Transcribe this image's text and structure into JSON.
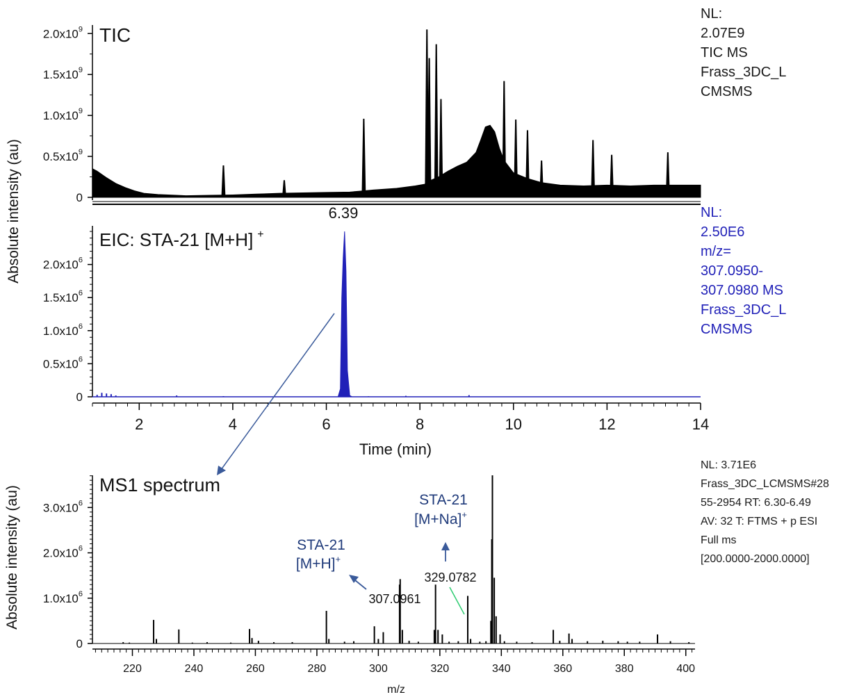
{
  "chart_data": [
    {
      "type": "line",
      "title": "TIC",
      "ylabel": "Absolute intensity (au)",
      "xlabel": "",
      "xlim": [
        1,
        14
      ],
      "ylim": [
        0,
        2070000000.0
      ],
      "y_ticks": [
        0,
        500000000.0,
        1000000000.0,
        1500000000.0,
        2000000000.0
      ],
      "y_tick_labels": [
        {
          "base": "0",
          "exp": ""
        },
        {
          "base": "0.5x10",
          "exp": "9"
        },
        {
          "base": "1.0x10",
          "exp": "9"
        },
        {
          "base": "1.5x10",
          "exp": "9"
        },
        {
          "base": "2.0x10",
          "exp": "9"
        }
      ],
      "baseline": [
        [
          1.0,
          350000000.0
        ],
        [
          1.1,
          320000000.0
        ],
        [
          1.3,
          240000000.0
        ],
        [
          1.5,
          170000000.0
        ],
        [
          1.7,
          120000000.0
        ],
        [
          1.9,
          80000000.0
        ],
        [
          2.1,
          50000000.0
        ],
        [
          2.4,
          35000000.0
        ],
        [
          2.8,
          25000000.0
        ],
        [
          3.0,
          20000000.0
        ],
        [
          3.5,
          25000000.0
        ],
        [
          4.0,
          30000000.0
        ],
        [
          4.5,
          40000000.0
        ],
        [
          5.0,
          50000000.0
        ],
        [
          5.5,
          55000000.0
        ],
        [
          6.0,
          60000000.0
        ],
        [
          6.5,
          65000000.0
        ],
        [
          6.8,
          80000000.0
        ],
        [
          7.0,
          90000000.0
        ],
        [
          7.5,
          110000000.0
        ],
        [
          7.9,
          140000000.0
        ],
        [
          8.1,
          160000000.0
        ],
        [
          8.2,
          200000000.0
        ],
        [
          8.4,
          250000000.0
        ],
        [
          8.6,
          320000000.0
        ],
        [
          8.8,
          380000000.0
        ],
        [
          9.0,
          430000000.0
        ],
        [
          9.2,
          550000000.0
        ],
        [
          9.3,
          700000000.0
        ],
        [
          9.4,
          860000000.0
        ],
        [
          9.5,
          880000000.0
        ],
        [
          9.6,
          800000000.0
        ],
        [
          9.7,
          600000000.0
        ],
        [
          9.8,
          450000000.0
        ],
        [
          10.0,
          300000000.0
        ],
        [
          10.3,
          230000000.0
        ],
        [
          10.6,
          180000000.0
        ],
        [
          11.0,
          150000000.0
        ],
        [
          11.5,
          140000000.0
        ],
        [
          12.0,
          150000000.0
        ],
        [
          12.5,
          140000000.0
        ],
        [
          13.0,
          150000000.0
        ],
        [
          13.5,
          150000000.0
        ],
        [
          14.0,
          150000000.0
        ]
      ],
      "peaks": [
        [
          3.8,
          390000000.0
        ],
        [
          5.1,
          210000000.0
        ],
        [
          6.8,
          960000000.0
        ],
        [
          8.15,
          2050000000.0
        ],
        [
          8.2,
          1700000000.0
        ],
        [
          8.35,
          1870000000.0
        ],
        [
          8.45,
          1200000000.0
        ],
        [
          9.8,
          1420000000.0
        ],
        [
          10.05,
          950000000.0
        ],
        [
          10.3,
          820000000.0
        ],
        [
          10.6,
          450000000.0
        ],
        [
          11.7,
          700000000.0
        ],
        [
          12.1,
          520000000.0
        ],
        [
          13.3,
          550000000.0
        ]
      ]
    },
    {
      "type": "line",
      "title": "EIC: STA-21 [M+H]",
      "title_superscript": "+",
      "ylabel": "Absolute intensity (au)",
      "xlabel": "Time (min)",
      "xlim": [
        1,
        14
      ],
      "ylim": [
        0,
        2500000.0
      ],
      "x_ticks": [
        2,
        4,
        6,
        8,
        10,
        12,
        14
      ],
      "y_ticks": [
        0,
        500000.0,
        1000000.0,
        1500000.0,
        2000000.0
      ],
      "y_tick_labels": [
        {
          "base": "0",
          "exp": ""
        },
        {
          "base": "0.5x10",
          "exp": "6"
        },
        {
          "base": "1.0x10",
          "exp": "6"
        },
        {
          "base": "1.5x10",
          "exp": "6"
        },
        {
          "base": "2.0x10",
          "exp": "6"
        }
      ],
      "peak_label": "6.39",
      "peak": [
        [
          6.25,
          0
        ],
        [
          6.3,
          120000.0
        ],
        [
          6.33,
          1500000.0
        ],
        [
          6.36,
          2100000.0
        ],
        [
          6.39,
          2500000.0
        ],
        [
          6.42,
          1900000.0
        ],
        [
          6.45,
          400000.0
        ],
        [
          6.5,
          20000.0
        ],
        [
          6.55,
          0
        ]
      ],
      "noise": [
        [
          1.1,
          30000.0
        ],
        [
          1.2,
          60000.0
        ],
        [
          1.3,
          50000.0
        ],
        [
          1.4,
          40000.0
        ],
        [
          1.5,
          20000.0
        ],
        [
          2.8,
          20000.0
        ],
        [
          3.8,
          10000.0
        ],
        [
          6.9,
          8000.0
        ],
        [
          7.7,
          15000.0
        ],
        [
          9.05,
          25000.0
        ]
      ]
    },
    {
      "type": "bar",
      "title": "MS1 spectrum",
      "ylabel": "Absolute intensity (au)",
      "xlabel": "m/z",
      "xlim": [
        207,
        403
      ],
      "ylim": [
        0,
        3710000.0
      ],
      "x_ticks": [
        220,
        240,
        260,
        280,
        300,
        320,
        340,
        360,
        380,
        400
      ],
      "y_ticks": [
        0,
        1000000.0,
        2000000.0,
        3000000.0
      ],
      "y_tick_labels": [
        {
          "base": "0",
          "exp": ""
        },
        {
          "base": "1.0x10",
          "exp": "6"
        },
        {
          "base": "2.0x10",
          "exp": "6"
        },
        {
          "base": "3.0x10",
          "exp": "6"
        }
      ],
      "peaks": [
        [
          217,
          30000.0
        ],
        [
          219,
          20000.0
        ],
        [
          226.9,
          520000.0
        ],
        [
          227.8,
          100000.0
        ],
        [
          235.1,
          310000.0
        ],
        [
          239.5,
          20000.0
        ],
        [
          244.3,
          30000.0
        ],
        [
          252,
          20000.0
        ],
        [
          258.1,
          320000.0
        ],
        [
          258.9,
          120000.0
        ],
        [
          261,
          60000.0
        ],
        [
          266,
          30000.0
        ],
        [
          272,
          30000.0
        ],
        [
          283.1,
          720000.0
        ],
        [
          283.9,
          100000.0
        ],
        [
          289,
          40000.0
        ],
        [
          292,
          50000.0
        ],
        [
          298.7,
          380000.0
        ],
        [
          300,
          100000.0
        ],
        [
          301.6,
          250000.0
        ],
        [
          306.9,
          1300000.0
        ],
        [
          307.0961,
          1420000.0
        ],
        [
          307.8,
          300000.0
        ],
        [
          310,
          60000.0
        ],
        [
          313,
          40000.0
        ],
        [
          318.2,
          300000.0
        ],
        [
          318.6,
          1300000.0
        ],
        [
          319.4,
          300000.0
        ],
        [
          320.8,
          200000.0
        ],
        [
          323,
          40000.0
        ],
        [
          326,
          50000.0
        ],
        [
          329.0782,
          1050000.0
        ],
        [
          330,
          100000.0
        ],
        [
          333,
          40000.0
        ],
        [
          335,
          50000.0
        ],
        [
          336.6,
          500000.0
        ],
        [
          336.9,
          2300000.0
        ],
        [
          337.1,
          3710000.0
        ],
        [
          337.7,
          1450000.0
        ],
        [
          338.3,
          600000.0
        ],
        [
          339.6,
          200000.0
        ],
        [
          341,
          50000.0
        ],
        [
          345,
          40000.0
        ],
        [
          350,
          30000.0
        ],
        [
          356.9,
          300000.0
        ],
        [
          359,
          60000.0
        ],
        [
          362,
          220000.0
        ],
        [
          363,
          100000.0
        ],
        [
          368,
          50000.0
        ],
        [
          373,
          60000.0
        ],
        [
          378,
          50000.0
        ],
        [
          381,
          40000.0
        ],
        [
          385,
          40000.0
        ],
        [
          390.8,
          200000.0
        ],
        [
          395,
          50000.0
        ],
        [
          401,
          30000.0
        ]
      ],
      "peak_labels": [
        {
          "mz": 307.0961,
          "text": "307.0961"
        },
        {
          "mz": 329.0782,
          "text": "329.0782"
        }
      ],
      "annotations": [
        {
          "line1": "STA-21",
          "line2": "[M+H]",
          "sup": "+"
        },
        {
          "line1": "STA-21",
          "line2": "[M+Na]",
          "sup": "+"
        }
      ]
    }
  ],
  "notes": {
    "tic": [
      "NL:",
      "2.07E9",
      "TIC  MS",
      "Frass_3DC_L",
      "CMSMS"
    ],
    "eic": [
      "NL:",
      "2.50E6",
      "m/z=",
      "307.0950-",
      "307.0980  MS",
      "Frass_3DC_L",
      "CMSMS"
    ],
    "ms1": [
      "NL: 3.71E6",
      "Frass_3DC_LCMSMS#28",
      "55-2954  RT: 6.30-6.49",
      "AV: 32 T: FTMS + p ESI",
      "Full ms",
      "[200.0000-2000.0000]"
    ]
  },
  "colors": {
    "tic": "#000000",
    "eic": "#2121b8",
    "spectrum": "#000000",
    "annotation": "#1f3a7a",
    "arrow": "#3a5a9a",
    "green_line": "#2ecc71"
  }
}
